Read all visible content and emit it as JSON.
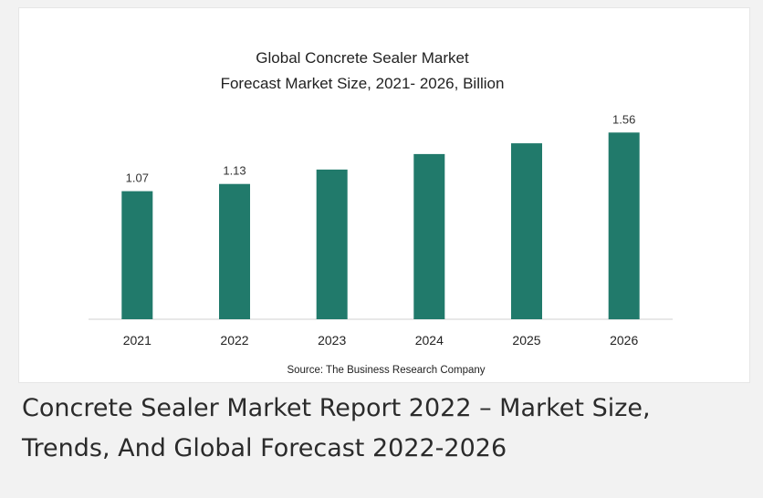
{
  "chart_data": {
    "type": "bar",
    "title_lines": [
      "Global Concrete Sealer Market",
      "Forecast Market Size, 2021- 2026, Billion"
    ],
    "categories": [
      "2021",
      "2022",
      "2023",
      "2024",
      "2025",
      "2026"
    ],
    "values": [
      1.07,
      1.13,
      1.25,
      1.38,
      1.47,
      1.56
    ],
    "data_labels": [
      "1.07",
      "1.13",
      "",
      "",
      "",
      "1.56"
    ],
    "ylim": [
      0,
      1.6
    ],
    "grid": false,
    "legend": "none",
    "bar_color": "#217a6b",
    "source": "Source: The Business Research Company"
  },
  "caption": "Concrete Sealer Market Report 2022  – Market Size, Trends, And Global Forecast 2022-2026"
}
